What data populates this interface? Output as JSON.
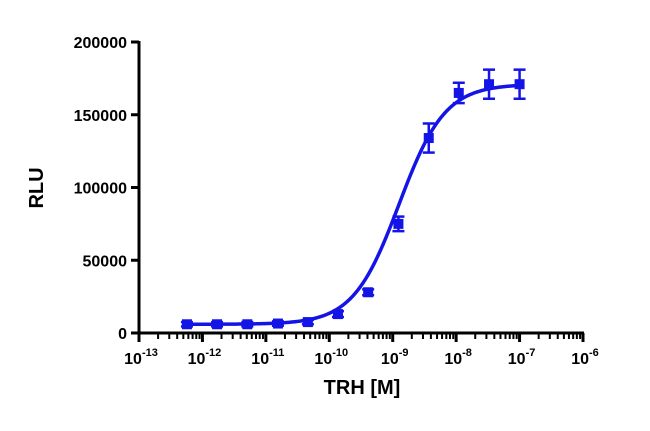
{
  "colors": {
    "series": "#1414e6",
    "axis": "#000000",
    "background": "#ffffff"
  },
  "chart_data": {
    "type": "scatter",
    "xlabel": "TRH [M]",
    "ylabel": "RLU",
    "xscale": "log",
    "xlim": [
      1e-13,
      1e-06
    ],
    "ylim": [
      0,
      200000
    ],
    "grid": false,
    "legend": "none",
    "yticks": [
      "0",
      "50000",
      "100000",
      "150000",
      "200000"
    ],
    "xticks": [
      {
        "base": "10",
        "exp": "-13"
      },
      {
        "base": "10",
        "exp": "-12"
      },
      {
        "base": "10",
        "exp": "-11"
      },
      {
        "base": "10",
        "exp": "-10"
      },
      {
        "base": "10",
        "exp": "-9"
      },
      {
        "base": "10",
        "exp": "-8"
      },
      {
        "base": "10",
        "exp": "-7"
      },
      {
        "base": "10",
        "exp": "-6"
      }
    ],
    "series": [
      {
        "marker": "square",
        "points": [
          {
            "x": 5.7e-13,
            "y": 6000,
            "err": 1500
          },
          {
            "x": 1.7e-12,
            "y": 6000,
            "err": 1500
          },
          {
            "x": 5.1e-12,
            "y": 6000,
            "err": 1500
          },
          {
            "x": 1.55e-11,
            "y": 6500,
            "err": 1500
          },
          {
            "x": 4.6e-11,
            "y": 7500,
            "err": 1500
          },
          {
            "x": 1.37e-10,
            "y": 13000,
            "err": 2000
          },
          {
            "x": 4.1e-10,
            "y": 28000,
            "err": 2000
          },
          {
            "x": 1.23e-09,
            "y": 75000,
            "err": 5000
          },
          {
            "x": 3.7e-09,
            "y": 134000,
            "err": 10000
          },
          {
            "x": 1.1e-08,
            "y": 165000,
            "err": 7000
          },
          {
            "x": 3.3e-08,
            "y": 171000,
            "err": 10000
          },
          {
            "x": 1e-07,
            "y": 171000,
            "err": 10000
          }
        ],
        "fit": {
          "model": "sigmoidal dose-response",
          "bottom": 6000,
          "top": 171000,
          "logEC50": -8.9,
          "hill": 1.2
        }
      }
    ]
  }
}
